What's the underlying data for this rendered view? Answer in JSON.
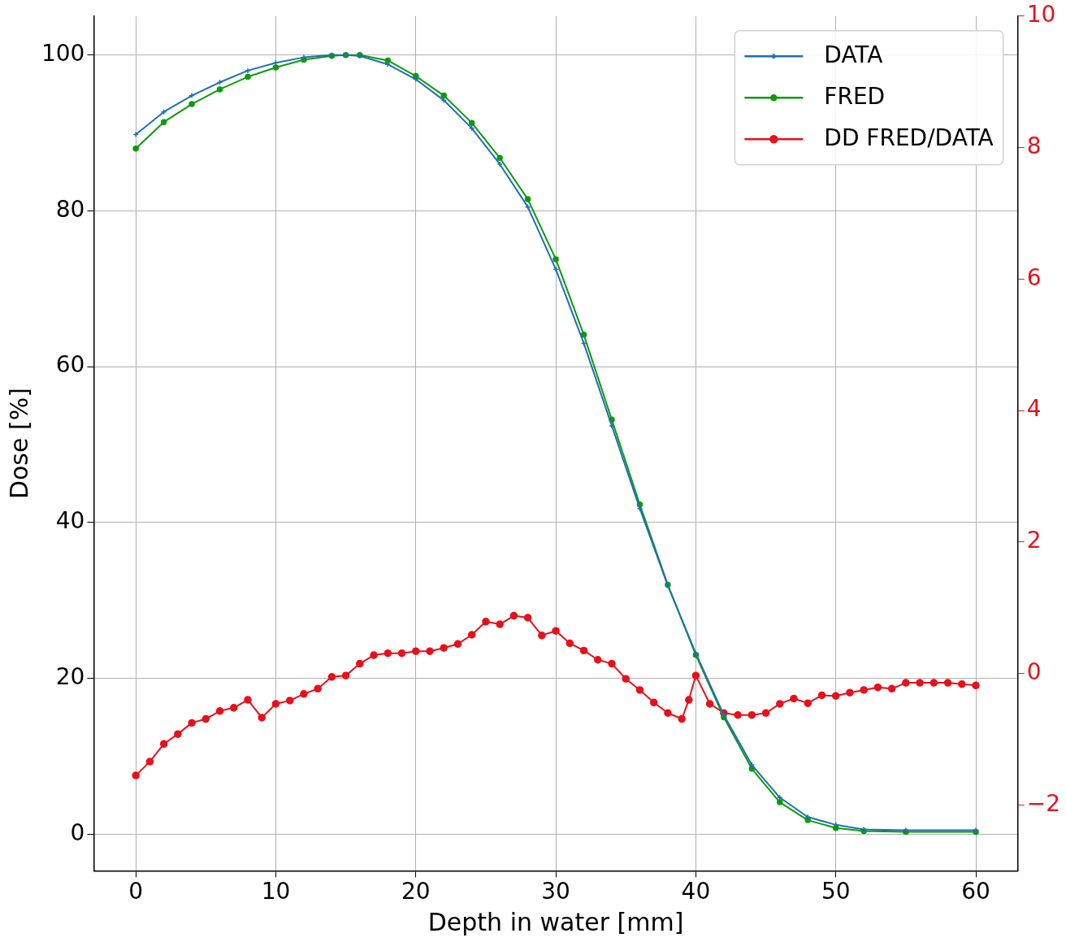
{
  "chart_data": {
    "type": "line",
    "xlabel": "Depth in water [mm]",
    "ylabel": "Dose [%]",
    "xlim": [
      -3,
      63
    ],
    "xticks": [
      0,
      10,
      20,
      30,
      40,
      50,
      60
    ],
    "ylim": [
      -4.7,
      105
    ],
    "yticks": [
      0,
      20,
      40,
      60,
      80,
      100
    ],
    "y2lim": [
      -3,
      10
    ],
    "y2ticks": [
      {
        "value": -2,
        "label": "−2"
      },
      0,
      2,
      4,
      6,
      8,
      10
    ],
    "grid": true,
    "legend": "top right",
    "line_style": "solid",
    "series": [
      {
        "name": "DATA",
        "color": "#1f6fb4",
        "marker": "cross",
        "x": [
          0,
          2,
          4,
          6,
          8,
          10,
          12,
          14,
          15,
          16,
          18,
          20,
          22,
          24,
          26,
          28,
          30,
          32,
          34,
          36,
          38,
          40,
          42,
          44,
          46,
          48,
          50,
          52,
          55,
          60
        ],
        "values": [
          89.8,
          92.7,
          94.8,
          96.5,
          98.0,
          99.0,
          99.7,
          100,
          100,
          99.9,
          98.8,
          96.9,
          94.2,
          90.6,
          86.0,
          80.5,
          72.5,
          63.0,
          52.4,
          41.8,
          31.9,
          23.2,
          15.3,
          8.9,
          4.7,
          2.2,
          1.2,
          0.6,
          0.5,
          0.5
        ]
      },
      {
        "name": "FRED",
        "color": "#0d9a0d",
        "marker": "circle",
        "x": [
          0,
          2,
          4,
          6,
          8,
          10,
          12,
          14,
          15,
          16,
          18,
          20,
          22,
          24,
          26,
          28,
          30,
          32,
          34,
          36,
          38,
          40,
          42,
          44,
          46,
          48,
          50,
          52,
          55,
          60
        ],
        "values": [
          88.0,
          91.4,
          93.7,
          95.6,
          97.2,
          98.4,
          99.4,
          99.9,
          100,
          100,
          99.3,
          97.3,
          94.8,
          91.3,
          86.8,
          81.5,
          73.8,
          64.1,
          53.2,
          42.3,
          32.0,
          23.0,
          15.0,
          8.4,
          4.1,
          1.8,
          0.8,
          0.4,
          0.3,
          0.3
        ]
      },
      {
        "name": "DD FRED/DATA",
        "color": "#e8101a",
        "marker": "circle",
        "axis": "y2",
        "x": [
          0,
          1,
          2,
          3,
          4,
          5,
          6,
          7,
          8,
          9,
          10,
          11,
          12,
          13,
          14,
          15,
          16,
          17,
          18,
          19,
          20,
          21,
          22,
          23,
          24,
          25,
          26,
          27,
          28,
          29,
          30,
          31,
          32,
          33,
          34,
          35,
          36,
          37,
          38,
          39,
          39.5,
          40,
          41,
          42,
          43,
          44,
          45,
          46,
          47,
          48,
          49,
          50,
          51,
          52,
          53,
          54,
          55,
          56,
          57,
          58,
          59,
          60
        ],
        "values": [
          -1.55,
          -1.34,
          -1.07,
          -0.92,
          -0.75,
          -0.69,
          -0.57,
          -0.52,
          -0.4,
          -0.67,
          -0.46,
          -0.41,
          -0.31,
          -0.23,
          -0.05,
          -0.03,
          0.15,
          0.28,
          0.31,
          0.31,
          0.34,
          0.34,
          0.39,
          0.45,
          0.59,
          0.79,
          0.75,
          0.88,
          0.85,
          0.58,
          0.65,
          0.46,
          0.35,
          0.21,
          0.15,
          -0.08,
          -0.25,
          -0.44,
          -0.6,
          -0.69,
          -0.4,
          -0.03,
          -0.46,
          -0.6,
          -0.63,
          -0.63,
          -0.6,
          -0.46,
          -0.38,
          -0.45,
          -0.33,
          -0.34,
          -0.29,
          -0.25,
          -0.21,
          -0.23,
          -0.14,
          -0.14,
          -0.14,
          -0.14,
          -0.16,
          -0.18
        ]
      }
    ]
  }
}
